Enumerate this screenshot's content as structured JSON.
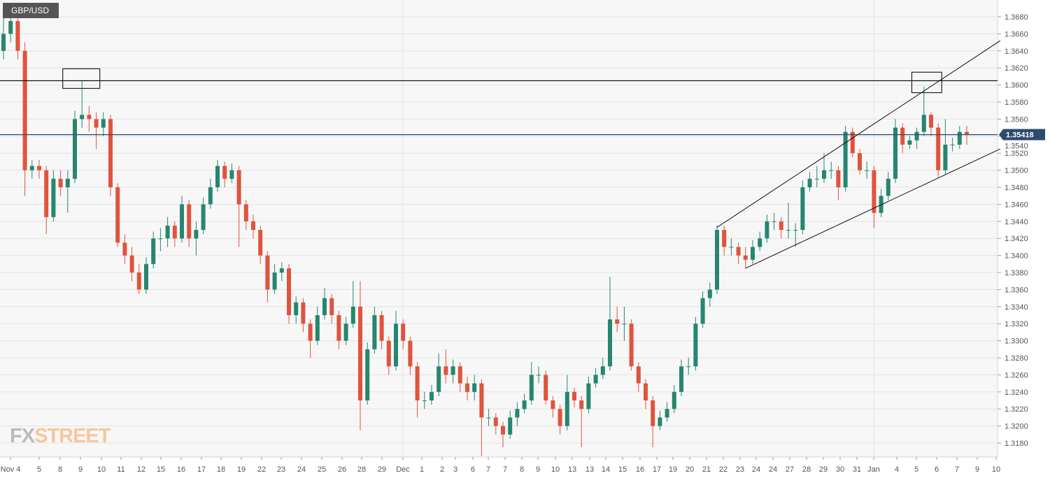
{
  "chart_data": {
    "type": "candlestick",
    "title": "GBP/USD",
    "ylim": [
      1.3164,
      1.37
    ],
    "y_ticks": [
      1.318,
      1.32,
      1.322,
      1.324,
      1.326,
      1.328,
      1.33,
      1.332,
      1.334,
      1.336,
      1.338,
      1.34,
      1.342,
      1.344,
      1.346,
      1.348,
      1.35,
      1.352,
      1.354,
      1.356,
      1.358,
      1.36,
      1.362,
      1.364,
      1.366,
      1.368
    ],
    "x_tick_labels": [
      "Nov 4",
      "5",
      "8",
      "9",
      "10",
      "11",
      "12",
      "15",
      "16",
      "17",
      "18",
      "19",
      "22",
      "23",
      "24",
      "25",
      "26",
      "28",
      "29",
      "Dec",
      "1",
      "2",
      "3",
      "6",
      "7",
      "7",
      "8",
      "9",
      "10",
      "13",
      "13",
      "14",
      "15",
      "16",
      "17",
      "19",
      "20",
      "21",
      "22",
      "23",
      "24",
      "24",
      "27",
      "28",
      "29",
      "30",
      "31",
      "Jan",
      "4",
      "5",
      "6",
      "7",
      "9",
      "10"
    ],
    "grid": true,
    "current_price": "1.35418",
    "current_price_value": 1.35418,
    "colors": {
      "up": "#26866f",
      "down": "#e0533d",
      "price_line": "#2b4a6e",
      "grid": "#e4e4e4",
      "background": "#f7f7f7"
    },
    "candles_ohlc": [
      [
        1.364,
        1.369,
        1.363,
        1.366
      ],
      [
        1.366,
        1.369,
        1.365,
        1.3675
      ],
      [
        1.3675,
        1.368,
        1.363,
        1.364
      ],
      [
        1.364,
        1.365,
        1.347,
        1.35
      ],
      [
        1.35,
        1.3512,
        1.349,
        1.3505
      ],
      [
        1.3505,
        1.3512,
        1.349,
        1.35
      ],
      [
        1.35,
        1.3505,
        1.3425,
        1.3445
      ],
      [
        1.3445,
        1.35,
        1.344,
        1.349
      ],
      [
        1.349,
        1.35,
        1.347,
        1.348
      ],
      [
        1.348,
        1.35,
        1.345,
        1.349
      ],
      [
        1.349,
        1.357,
        1.3485,
        1.356
      ],
      [
        1.356,
        1.3605,
        1.355,
        1.3565
      ],
      [
        1.3565,
        1.3575,
        1.3545,
        1.356
      ],
      [
        1.356,
        1.3568,
        1.3525,
        1.355
      ],
      [
        1.355,
        1.3568,
        1.354,
        1.356
      ],
      [
        1.356,
        1.3565,
        1.347,
        1.348
      ],
      [
        1.348,
        1.3485,
        1.341,
        1.3415
      ],
      [
        1.3415,
        1.3425,
        1.339,
        1.34
      ],
      [
        1.34,
        1.341,
        1.337,
        1.338
      ],
      [
        1.338,
        1.339,
        1.3355,
        1.336
      ],
      [
        1.336,
        1.3398,
        1.3355,
        1.339
      ],
      [
        1.339,
        1.3428,
        1.3385,
        1.342
      ],
      [
        1.342,
        1.3432,
        1.3405,
        1.342
      ],
      [
        1.342,
        1.3445,
        1.341,
        1.3435
      ],
      [
        1.3435,
        1.344,
        1.341,
        1.342
      ],
      [
        1.342,
        1.347,
        1.3415,
        1.346
      ],
      [
        1.346,
        1.3465,
        1.341,
        1.342
      ],
      [
        1.342,
        1.344,
        1.34,
        1.343
      ],
      [
        1.343,
        1.3468,
        1.3425,
        1.346
      ],
      [
        1.346,
        1.349,
        1.3455,
        1.348
      ],
      [
        1.348,
        1.3512,
        1.3475,
        1.3505
      ],
      [
        1.3505,
        1.351,
        1.348,
        1.349
      ],
      [
        1.349,
        1.3508,
        1.3485,
        1.35
      ],
      [
        1.35,
        1.3505,
        1.341,
        1.346
      ],
      [
        1.346,
        1.3465,
        1.343,
        1.344
      ],
      [
        1.344,
        1.3448,
        1.342,
        1.343
      ],
      [
        1.343,
        1.3435,
        1.339,
        1.34
      ],
      [
        1.34,
        1.3405,
        1.3345,
        1.336
      ],
      [
        1.336,
        1.339,
        1.3355,
        1.338
      ],
      [
        1.338,
        1.3392,
        1.337,
        1.3385
      ],
      [
        1.3385,
        1.339,
        1.332,
        1.333
      ],
      [
        1.333,
        1.3352,
        1.332,
        1.3345
      ],
      [
        1.3345,
        1.335,
        1.331,
        1.332
      ],
      [
        1.332,
        1.3325,
        1.328,
        1.33
      ],
      [
        1.33,
        1.334,
        1.3295,
        1.333
      ],
      [
        1.333,
        1.3362,
        1.3325,
        1.335
      ],
      [
        1.335,
        1.3355,
        1.332,
        1.333
      ],
      [
        1.333,
        1.3335,
        1.329,
        1.33
      ],
      [
        1.33,
        1.3328,
        1.3295,
        1.332
      ],
      [
        1.332,
        1.337,
        1.3315,
        1.334
      ],
      [
        1.334,
        1.337,
        1.3195,
        1.323
      ],
      [
        1.323,
        1.3298,
        1.3225,
        1.329
      ],
      [
        1.329,
        1.334,
        1.3285,
        1.333
      ],
      [
        1.333,
        1.3335,
        1.329,
        1.33
      ],
      [
        1.33,
        1.3305,
        1.326,
        1.327
      ],
      [
        1.327,
        1.3335,
        1.3265,
        1.332
      ],
      [
        1.332,
        1.3325,
        1.329,
        1.33
      ],
      [
        1.33,
        1.3305,
        1.326,
        1.327
      ],
      [
        1.327,
        1.3275,
        1.321,
        1.323
      ],
      [
        1.323,
        1.324,
        1.322,
        1.323
      ],
      [
        1.323,
        1.3248,
        1.3225,
        1.324
      ],
      [
        1.324,
        1.3285,
        1.3235,
        1.327
      ],
      [
        1.327,
        1.329,
        1.325,
        1.326
      ],
      [
        1.326,
        1.3278,
        1.325,
        1.327
      ],
      [
        1.327,
        1.3275,
        1.324,
        1.325
      ],
      [
        1.325,
        1.3258,
        1.323,
        1.324
      ],
      [
        1.324,
        1.326,
        1.323,
        1.325
      ],
      [
        1.325,
        1.3255,
        1.3165,
        1.321
      ],
      [
        1.321,
        1.322,
        1.32,
        1.321
      ],
      [
        1.321,
        1.3215,
        1.319,
        1.32
      ],
      [
        1.32,
        1.3205,
        1.3175,
        1.319
      ],
      [
        1.319,
        1.3218,
        1.3185,
        1.321
      ],
      [
        1.321,
        1.3228,
        1.32,
        1.322
      ],
      [
        1.322,
        1.3238,
        1.3215,
        1.323
      ],
      [
        1.323,
        1.3275,
        1.3225,
        1.326
      ],
      [
        1.326,
        1.327,
        1.325,
        1.326
      ],
      [
        1.326,
        1.3265,
        1.3225,
        1.323
      ],
      [
        1.323,
        1.3235,
        1.321,
        1.322
      ],
      [
        1.322,
        1.3225,
        1.319,
        1.32
      ],
      [
        1.32,
        1.326,
        1.3195,
        1.324
      ],
      [
        1.324,
        1.3245,
        1.3222,
        1.323
      ],
      [
        1.323,
        1.3235,
        1.3175,
        1.322
      ],
      [
        1.322,
        1.3258,
        1.3215,
        1.325
      ],
      [
        1.325,
        1.3268,
        1.3245,
        1.326
      ],
      [
        1.326,
        1.328,
        1.3255,
        1.327
      ],
      [
        1.327,
        1.3375,
        1.3265,
        1.3325
      ],
      [
        1.3325,
        1.334,
        1.331,
        1.332
      ],
      [
        1.332,
        1.334,
        1.33,
        1.332
      ],
      [
        1.332,
        1.3325,
        1.3265,
        1.327
      ],
      [
        1.327,
        1.3275,
        1.324,
        1.325
      ],
      [
        1.325,
        1.3255,
        1.322,
        1.323
      ],
      [
        1.323,
        1.3235,
        1.3175,
        1.32
      ],
      [
        1.32,
        1.3218,
        1.3195,
        1.321
      ],
      [
        1.321,
        1.3228,
        1.3205,
        1.322
      ],
      [
        1.322,
        1.3248,
        1.3215,
        1.324
      ],
      [
        1.324,
        1.3278,
        1.3235,
        1.327
      ],
      [
        1.327,
        1.328,
        1.326,
        1.327
      ],
      [
        1.327,
        1.3328,
        1.3265,
        1.332
      ],
      [
        1.332,
        1.3358,
        1.3315,
        1.335
      ],
      [
        1.335,
        1.3368,
        1.334,
        1.336
      ],
      [
        1.336,
        1.3435,
        1.3355,
        1.343
      ],
      [
        1.343,
        1.3435,
        1.34,
        1.341
      ],
      [
        1.341,
        1.342,
        1.34,
        1.341
      ],
      [
        1.341,
        1.3415,
        1.339,
        1.34
      ],
      [
        1.34,
        1.341,
        1.3385,
        1.3395
      ],
      [
        1.3395,
        1.3418,
        1.339,
        1.341
      ],
      [
        1.341,
        1.3428,
        1.3405,
        1.342
      ],
      [
        1.342,
        1.3448,
        1.3415,
        1.344
      ],
      [
        1.344,
        1.345,
        1.343,
        1.344
      ],
      [
        1.344,
        1.3445,
        1.342,
        1.343
      ],
      [
        1.343,
        1.3462,
        1.342,
        1.343
      ],
      [
        1.343,
        1.3438,
        1.341,
        1.343
      ],
      [
        1.343,
        1.3488,
        1.3425,
        1.348
      ],
      [
        1.348,
        1.3498,
        1.3475,
        1.349
      ],
      [
        1.349,
        1.3505,
        1.348,
        1.349
      ],
      [
        1.349,
        1.352,
        1.3485,
        1.35
      ],
      [
        1.35,
        1.351,
        1.349,
        1.35
      ],
      [
        1.35,
        1.3505,
        1.3465,
        1.348
      ],
      [
        1.348,
        1.3552,
        1.3475,
        1.3545
      ],
      [
        1.3545,
        1.355,
        1.3515,
        1.352
      ],
      [
        1.352,
        1.3525,
        1.3495,
        1.35
      ],
      [
        1.35,
        1.351,
        1.349,
        1.35
      ],
      [
        1.35,
        1.3505,
        1.3432,
        1.345
      ],
      [
        1.345,
        1.3478,
        1.3445,
        1.347
      ],
      [
        1.347,
        1.3498,
        1.3465,
        1.349
      ],
      [
        1.349,
        1.356,
        1.3485,
        1.355
      ],
      [
        1.355,
        1.3555,
        1.352,
        1.353
      ],
      [
        1.353,
        1.354,
        1.3525,
        1.3535
      ],
      [
        1.3535,
        1.355,
        1.3525,
        1.3545
      ],
      [
        1.3545,
        1.3598,
        1.354,
        1.3565
      ],
      [
        1.3565,
        1.3568,
        1.354,
        1.355
      ],
      [
        1.355,
        1.3555,
        1.3492,
        1.35
      ],
      [
        1.35,
        1.356,
        1.3495,
        1.353
      ],
      [
        1.353,
        1.3538,
        1.3522,
        1.353
      ],
      [
        1.353,
        1.3552,
        1.3525,
        1.3545
      ],
      [
        1.3545,
        1.3552,
        1.353,
        1.35418
      ]
    ],
    "horizontal_levels": [
      1.3605
    ],
    "trendlines": [
      {
        "from": [
          100,
          1.3433
        ],
        "to": [
          139.7,
          1.3652
        ]
      },
      {
        "from": [
          104,
          1.3385
        ],
        "to": [
          139.7,
          1.3525
        ]
      }
    ],
    "boxes": [
      {
        "from_index": 8.3,
        "to_index": 13.5,
        "price_top": 1.3619,
        "price_bottom": 1.3596
      },
      {
        "from_index": 127.3,
        "to_index": 131.5,
        "price_top": 1.3615,
        "price_bottom": 1.3591
      }
    ]
  },
  "logo": {
    "part1": "FX",
    "part2": "STREET"
  }
}
